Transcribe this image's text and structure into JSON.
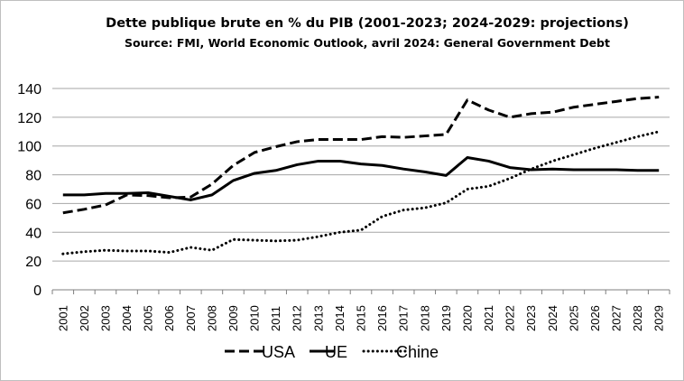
{
  "chart_data": {
    "type": "line",
    "title": "Dette publique brute en % du PIB (2001-2023; 2024-2029: projections)",
    "subtitle": "Source: FMI, World Economic Outlook, avril 2024: General Government Debt",
    "xlabel": "",
    "ylabel": "",
    "ylim": [
      0,
      140
    ],
    "yticks": [
      0,
      20,
      40,
      60,
      80,
      100,
      120,
      140
    ],
    "grid": true,
    "legend_position": "bottom",
    "x": [
      "2001",
      "2002",
      "2003",
      "2004",
      "2005",
      "2006",
      "2007",
      "2008",
      "2009",
      "2010",
      "2011",
      "2012",
      "2013",
      "2014",
      "2015",
      "2016",
      "2017",
      "2018",
      "2019",
      "2020",
      "2021",
      "2022",
      "2023",
      "2024",
      "2025",
      "2026",
      "2027",
      "2028",
      "2029"
    ],
    "series": [
      {
        "name": "USA",
        "style": "dashed",
        "color": "#000000",
        "values": [
          53.5,
          56,
          59,
          66,
          65.5,
          64,
          64.5,
          73.5,
          86.5,
          95.5,
          99.5,
          103,
          104.5,
          104.5,
          104.5,
          106.5,
          106,
          107,
          108,
          132,
          125,
          120,
          122.5,
          123.5,
          127,
          129,
          131,
          133,
          134
        ]
      },
      {
        "name": "UE",
        "style": "solid",
        "color": "#000000",
        "values": [
          66,
          66,
          67,
          67,
          67.5,
          65,
          62.5,
          66,
          76,
          81,
          83,
          87,
          89.5,
          89.5,
          87.5,
          86.5,
          84,
          82,
          79.5,
          92,
          89.5,
          85,
          83.5,
          84,
          83.5,
          83.5,
          83.5,
          83,
          83
        ]
      },
      {
        "name": "Chine",
        "style": "dotted",
        "color": "#000000",
        "values": [
          25,
          26.5,
          27.5,
          27,
          27,
          26,
          29.5,
          27.5,
          35,
          34.5,
          34,
          34.5,
          37,
          40,
          41.5,
          51,
          55.5,
          57,
          60.5,
          70,
          72,
          77.5,
          84,
          89.5,
          94,
          98.5,
          102.5,
          106.5,
          110
        ]
      }
    ]
  }
}
